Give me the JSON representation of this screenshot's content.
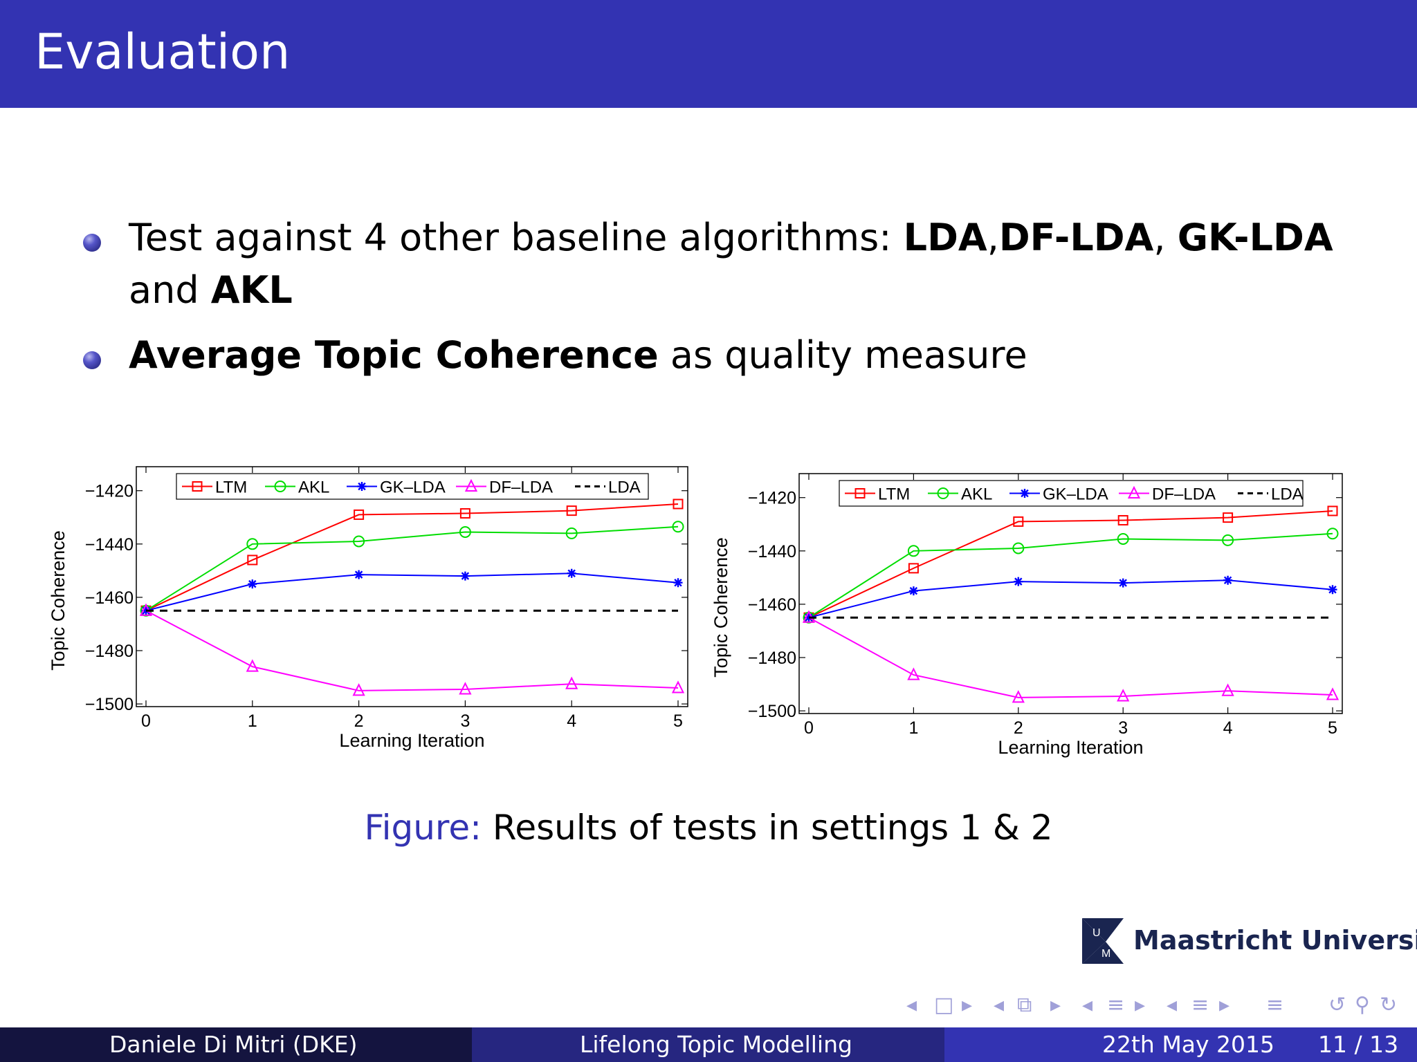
{
  "header": {
    "title": "Evaluation"
  },
  "bullets": [
    {
      "line1_text": "Test against 4 other baseline algorithms: ",
      "line1_b1": "LDA",
      "line1_sep1": ",",
      "line1_b2": "DF-LDA",
      "line1_sep2": ", ",
      "line1_b3": "GK-LDA",
      "line2_text": "and ",
      "line2_b1": "AKL"
    },
    {
      "b1": "Average Topic Coherence",
      "text": " as quality measure"
    }
  ],
  "chart_data": [
    {
      "type": "line",
      "title": "",
      "xlabel": "Learning Iteration",
      "ylabel": "Topic Coherence",
      "x": [
        0,
        1,
        2,
        3,
        4,
        5
      ],
      "xticks": [
        "0",
        "1",
        "2",
        "3",
        "4",
        "5"
      ],
      "yticks": [
        "−1420",
        "−1440",
        "−1460",
        "−1480",
        "−1500"
      ],
      "ytick_values": [
        -1420,
        -1440,
        -1460,
        -1480,
        -1500
      ],
      "ylim": [
        -1501,
        -1411
      ],
      "legend_position": "top",
      "series": [
        {
          "name": "LTM",
          "color": "#ff0000",
          "marker": "square",
          "dash": false,
          "values": [
            -1465,
            -1446,
            -1429,
            -1428.5,
            -1427.5,
            -1425
          ]
        },
        {
          "name": "AKL",
          "color": "#00dd00",
          "marker": "circle",
          "dash": false,
          "values": [
            -1465,
            -1440,
            -1439,
            -1435.5,
            -1436,
            -1433.5
          ]
        },
        {
          "name": "GK–LDA",
          "color": "#0000ff",
          "marker": "star",
          "dash": false,
          "values": [
            -1465,
            -1455,
            -1451.5,
            -1452,
            -1451,
            -1454.5
          ]
        },
        {
          "name": "DF–LDA",
          "color": "#ff00ff",
          "marker": "triangle",
          "dash": false,
          "values": [
            -1465,
            -1486,
            -1495,
            -1494.5,
            -1492.5,
            -1494
          ]
        },
        {
          "name": "LDA",
          "color": "#000000",
          "marker": "none",
          "dash": true,
          "values": [
            -1465,
            -1465,
            -1465,
            -1465,
            -1465,
            -1465
          ]
        }
      ]
    },
    {
      "type": "line",
      "title": "",
      "xlabel": "Learning Iteration",
      "ylabel": "Topic Coherence",
      "x": [
        0,
        1,
        2,
        3,
        4,
        5
      ],
      "xticks": [
        "0",
        "1",
        "2",
        "3",
        "4",
        "5"
      ],
      "yticks": [
        "−1420",
        "−1440",
        "−1460",
        "−1480",
        "−1500"
      ],
      "ytick_values": [
        -1420,
        -1440,
        -1460,
        -1480,
        -1500
      ],
      "ylim": [
        -1501,
        -1411
      ],
      "legend_position": "top",
      "series": [
        {
          "name": "LTM",
          "color": "#ff0000",
          "marker": "square",
          "dash": false,
          "values": [
            -1465,
            -1446.5,
            -1429,
            -1428.5,
            -1427.5,
            -1425
          ]
        },
        {
          "name": "AKL",
          "color": "#00dd00",
          "marker": "circle",
          "dash": false,
          "values": [
            -1465,
            -1440,
            -1439,
            -1435.5,
            -1436,
            -1433.5
          ]
        },
        {
          "name": "GK–LDA",
          "color": "#0000ff",
          "marker": "star",
          "dash": false,
          "values": [
            -1465,
            -1455,
            -1451.5,
            -1452,
            -1451,
            -1454.5
          ]
        },
        {
          "name": "DF–LDA",
          "color": "#ff00ff",
          "marker": "triangle",
          "dash": false,
          "values": [
            -1465,
            -1486.5,
            -1495,
            -1494.5,
            -1492.5,
            -1494
          ]
        },
        {
          "name": "LDA",
          "color": "#000000",
          "marker": "none",
          "dash": true,
          "values": [
            -1465,
            -1465,
            -1465,
            -1465,
            -1465,
            -1465
          ]
        }
      ]
    }
  ],
  "caption": {
    "label": "Figure:",
    "text": " Results of tests in settings 1 & 2"
  },
  "logo": {
    "text": "Maastricht University"
  },
  "footer": {
    "author": "Daniele Di Mitri  (DKE)",
    "title": "Lifelong Topic Modelling",
    "date": "22th May 2015",
    "page": "11 / 13"
  },
  "colors": {
    "header_bg": "#3333b2",
    "footer_left": "#14143f",
    "footer_mid": "#262680",
    "footer_right": "#3333b2",
    "caption_label": "#3333b2"
  }
}
